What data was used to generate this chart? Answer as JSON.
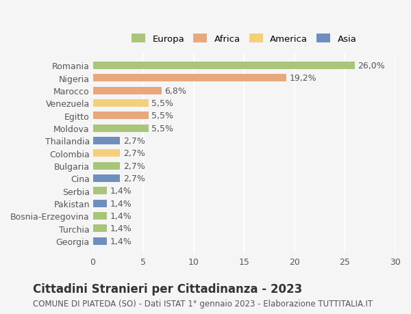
{
  "countries": [
    "Romania",
    "Nigeria",
    "Marocco",
    "Venezuela",
    "Egitto",
    "Moldova",
    "Thailandia",
    "Colombia",
    "Bulgaria",
    "Cina",
    "Serbia",
    "Pakistan",
    "Bosnia-Erzegovina",
    "Turchia",
    "Georgia"
  ],
  "values": [
    26.0,
    19.2,
    6.8,
    5.5,
    5.5,
    5.5,
    2.7,
    2.7,
    2.7,
    2.7,
    1.4,
    1.4,
    1.4,
    1.4,
    1.4
  ],
  "labels": [
    "26,0%",
    "19,2%",
    "6,8%",
    "5,5%",
    "5,5%",
    "5,5%",
    "2,7%",
    "2,7%",
    "2,7%",
    "2,7%",
    "1,4%",
    "1,4%",
    "1,4%",
    "1,4%",
    "1,4%"
  ],
  "colors": [
    "#a8c57a",
    "#e8a87c",
    "#e8a87c",
    "#f5d07a",
    "#e8a87c",
    "#a8c57a",
    "#6e8fbe",
    "#f5d07a",
    "#a8c57a",
    "#6e8fbe",
    "#a8c57a",
    "#6e8fbe",
    "#a8c57a",
    "#a8c57a",
    "#6e8fbe"
  ],
  "continent": [
    "Europa",
    "Africa",
    "Africa",
    "America",
    "Africa",
    "Europa",
    "Asia",
    "America",
    "Europa",
    "Asia",
    "Europa",
    "Asia",
    "Europa",
    "Europa",
    "Asia"
  ],
  "legend_labels": [
    "Europa",
    "Africa",
    "America",
    "Asia"
  ],
  "legend_colors": [
    "#a8c57a",
    "#e8a87c",
    "#f5d07a",
    "#6e8fbe"
  ],
  "xlim": [
    0,
    30
  ],
  "xticks": [
    0,
    5,
    10,
    15,
    20,
    25,
    30
  ],
  "title": "Cittadini Stranieri per Cittadinanza - 2023",
  "subtitle": "COMUNE DI PIATEDA (SO) - Dati ISTAT 1° gennaio 2023 - Elaborazione TUTTITALIA.IT",
  "bg_color": "#f5f5f5",
  "bar_height": 0.6,
  "label_fontsize": 9,
  "title_fontsize": 12,
  "subtitle_fontsize": 8.5
}
